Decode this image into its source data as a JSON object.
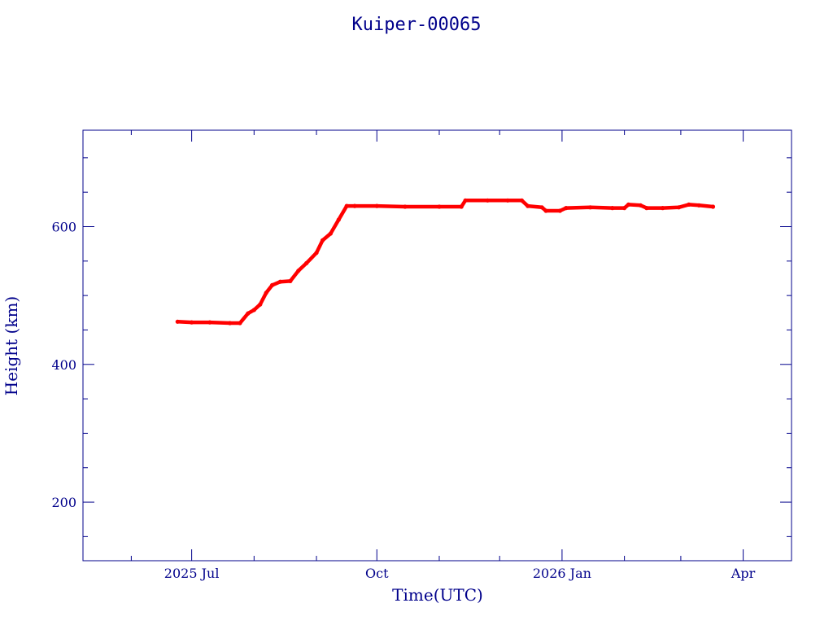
{
  "chart_data": {
    "type": "scatter",
    "title": "Kuiper-00065",
    "xlabel": "Time(UTC)",
    "ylabel": "Height (km)",
    "x_is_date": true,
    "xlim": [
      "2025-05-08",
      "2026-04-25"
    ],
    "ylim": [
      115,
      740
    ],
    "x_ticks": [
      {
        "date": "2025-07-01",
        "label": "2025 Jul"
      },
      {
        "date": "2025-10-01",
        "label": "Oct"
      },
      {
        "date": "2026-01-01",
        "label": "2026 Jan"
      },
      {
        "date": "2026-04-01",
        "label": "Apr"
      }
    ],
    "x_minor_ticks": [
      "2025-06-01",
      "2025-08-01",
      "2025-09-01",
      "2025-11-01",
      "2025-12-01",
      "2026-02-01",
      "2026-03-01"
    ],
    "y_ticks": [
      200,
      400,
      600
    ],
    "y_minor_step": 50,
    "grid": false,
    "colors": {
      "axis": "#00008b",
      "series": "#ff0000",
      "text": "#00008b"
    },
    "series": [
      {
        "points": [
          [
            "2025-06-24",
            462
          ],
          [
            "2025-07-01",
            461
          ],
          [
            "2025-07-10",
            461
          ],
          [
            "2025-07-20",
            460
          ],
          [
            "2025-07-25",
            460
          ],
          [
            "2025-07-29",
            474
          ],
          [
            "2025-08-01",
            479
          ],
          [
            "2025-08-04",
            487
          ],
          [
            "2025-08-07",
            504
          ],
          [
            "2025-08-10",
            515
          ],
          [
            "2025-08-14",
            520
          ],
          [
            "2025-08-19",
            521
          ],
          [
            "2025-08-23",
            536
          ],
          [
            "2025-08-27",
            547
          ],
          [
            "2025-09-01",
            562
          ],
          [
            "2025-09-04",
            580
          ],
          [
            "2025-09-08",
            590
          ],
          [
            "2025-09-12",
            610
          ],
          [
            "2025-09-16",
            630
          ],
          [
            "2025-09-20",
            630
          ],
          [
            "2025-10-01",
            630
          ],
          [
            "2025-10-15",
            629
          ],
          [
            "2025-11-01",
            629
          ],
          [
            "2025-11-12",
            629
          ],
          [
            "2025-11-14",
            638
          ],
          [
            "2025-11-25",
            638
          ],
          [
            "2025-12-05",
            638
          ],
          [
            "2025-12-12",
            638
          ],
          [
            "2025-12-15",
            630
          ],
          [
            "2025-12-22",
            628
          ],
          [
            "2025-12-24",
            623
          ],
          [
            "2025-12-31",
            623
          ],
          [
            "2026-01-03",
            627
          ],
          [
            "2026-01-15",
            628
          ],
          [
            "2026-01-26",
            627
          ],
          [
            "2026-02-01",
            627
          ],
          [
            "2026-02-03",
            632
          ],
          [
            "2026-02-09",
            631
          ],
          [
            "2026-02-12",
            627
          ],
          [
            "2026-02-20",
            627
          ],
          [
            "2026-02-28",
            628
          ],
          [
            "2026-03-05",
            632
          ],
          [
            "2026-03-10",
            631
          ],
          [
            "2026-03-17",
            629
          ]
        ]
      }
    ]
  }
}
